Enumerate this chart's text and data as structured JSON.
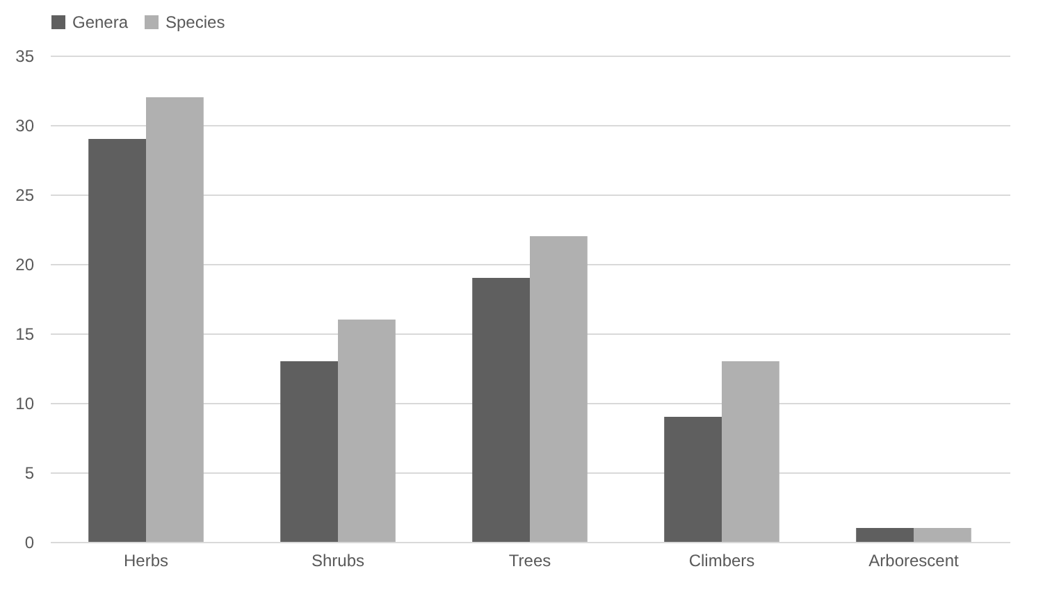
{
  "chart_data": {
    "type": "bar",
    "categories": [
      "Herbs",
      "Shrubs",
      "Trees",
      "Climbers",
      "Arborescent"
    ],
    "series": [
      {
        "name": "Genera",
        "color": "#5f5f5f",
        "values": [
          29,
          13,
          19,
          9,
          1
        ]
      },
      {
        "name": "Species",
        "color": "#b0b0b0",
        "values": [
          32,
          16,
          22,
          13,
          1
        ]
      }
    ],
    "ylim": [
      0,
      35
    ],
    "yticks": [
      0,
      5,
      10,
      15,
      20,
      25,
      30,
      35
    ],
    "grid": "y",
    "legend": "top"
  }
}
